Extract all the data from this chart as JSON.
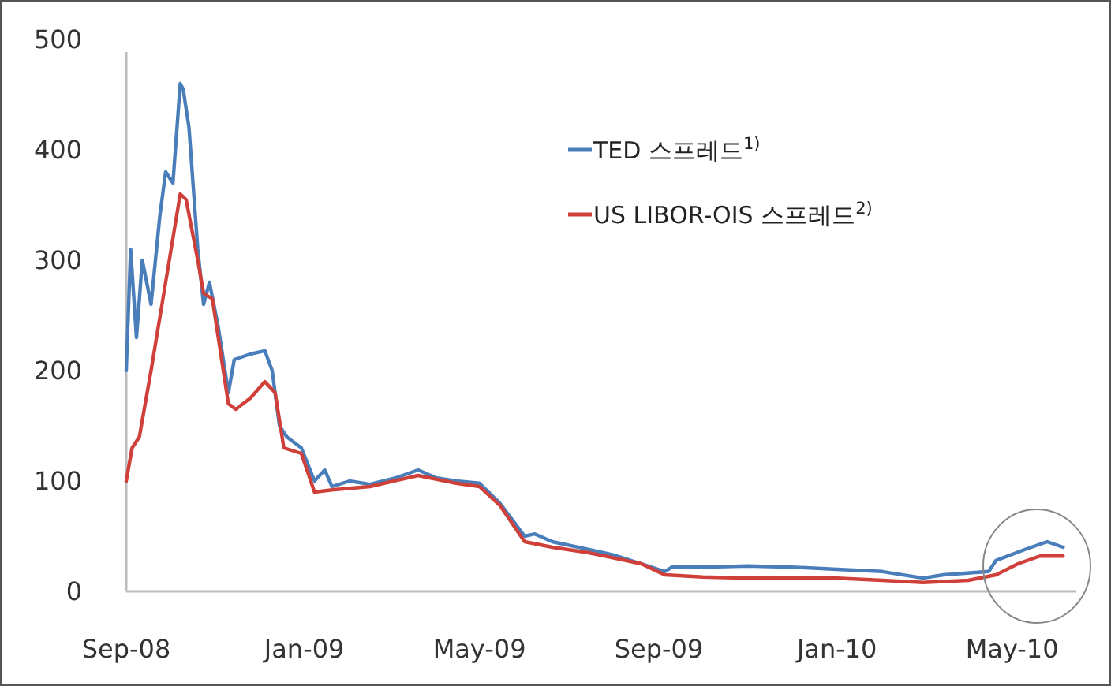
{
  "chart_data": {
    "type": "line",
    "x": [
      "2008-09-01",
      "2008-09-04",
      "2008-09-08",
      "2008-09-12",
      "2008-09-18",
      "2008-09-24",
      "2008-09-28",
      "2008-10-03",
      "2008-10-08",
      "2008-10-10",
      "2008-10-14",
      "2008-10-20",
      "2008-10-24",
      "2008-10-28",
      "2008-11-03",
      "2008-11-10",
      "2008-11-14",
      "2008-11-25",
      "2008-12-05",
      "2008-12-10",
      "2008-12-15",
      "2008-12-20",
      "2008-12-30",
      "2009-01-08",
      "2009-01-15",
      "2009-01-20",
      "2009-02-01",
      "2009-02-15",
      "2009-03-05",
      "2009-03-20",
      "2009-04-01",
      "2009-04-15",
      "2009-05-01",
      "2009-05-15",
      "2009-06-01",
      "2009-06-08",
      "2009-06-20",
      "2009-07-15",
      "2009-08-01",
      "2009-08-20",
      "2009-09-05",
      "2009-09-10",
      "2009-10-01",
      "2009-11-01",
      "2009-12-01",
      "2010-01-01",
      "2010-02-01",
      "2010-03-01",
      "2010-03-15",
      "2010-04-15",
      "2010-04-20",
      "2010-05-10",
      "2010-05-25",
      "2010-06-05"
    ],
    "series": [
      {
        "name": "TED 스프레드$^{1)}$",
        "color": "#4a7ebb",
        "values": [
          200,
          310,
          230,
          300,
          260,
          340,
          380,
          370,
          460,
          455,
          420,
          310,
          260,
          280,
          240,
          180,
          210,
          215,
          218,
          200,
          150,
          140,
          130,
          100,
          110,
          95,
          100,
          97,
          103,
          110,
          103,
          100,
          98,
          80,
          50,
          52,
          45,
          38,
          33,
          25,
          18,
          22,
          22,
          23,
          22,
          20,
          18,
          12,
          15,
          18,
          28,
          38,
          45,
          40
        ]
      },
      {
        "name": "US LIBOR-OIS 스프레드$^{2)}$",
        "color": "#d0403a",
        "x": [
          "2008-09-01",
          "2008-09-05",
          "2008-09-10",
          "2008-09-18",
          "2008-09-28",
          "2008-10-03",
          "2008-10-08",
          "2008-10-12",
          "2008-10-20",
          "2008-10-24",
          "2008-10-30",
          "2008-11-10",
          "2008-11-15",
          "2008-11-25",
          "2008-12-05",
          "2008-12-12",
          "2008-12-18",
          "2008-12-30",
          "2009-01-08",
          "2009-01-20",
          "2009-02-15",
          "2009-03-20",
          "2009-04-15",
          "2009-05-01",
          "2009-05-15",
          "2009-06-01",
          "2009-06-20",
          "2009-07-15",
          "2009-08-20",
          "2009-09-05",
          "2009-10-01",
          "2009-11-01",
          "2009-12-01",
          "2010-01-01",
          "2010-02-01",
          "2010-03-01",
          "2010-04-01",
          "2010-04-20",
          "2010-05-05",
          "2010-05-20",
          "2010-06-05"
        ],
        "values": [
          100,
          130,
          140,
          200,
          280,
          320,
          360,
          355,
          300,
          270,
          265,
          170,
          165,
          175,
          190,
          180,
          130,
          125,
          90,
          92,
          95,
          105,
          98,
          95,
          78,
          45,
          40,
          35,
          25,
          15,
          13,
          12,
          12,
          12,
          10,
          8,
          10,
          15,
          25,
          32,
          32
        ]
      }
    ],
    "xlim": [
      "2008-09-01",
      "2010-06-14"
    ],
    "xticks": [
      {
        "value": "2008-09-01",
        "label": "Sep-08"
      },
      {
        "value": "2009-01-01",
        "label": "Jan-09"
      },
      {
        "value": "2009-05-01",
        "label": "May-09"
      },
      {
        "value": "2009-09-01",
        "label": "Sep-09"
      },
      {
        "value": "2010-01-01",
        "label": "Jan-10"
      },
      {
        "value": "2010-05-01",
        "label": "May-10"
      }
    ],
    "ylim": [
      0,
      500
    ],
    "yticks": [
      0,
      100,
      200,
      300,
      400,
      500
    ],
    "grid": false,
    "legend": "top right",
    "marker": "none",
    "line_style": "solid"
  }
}
